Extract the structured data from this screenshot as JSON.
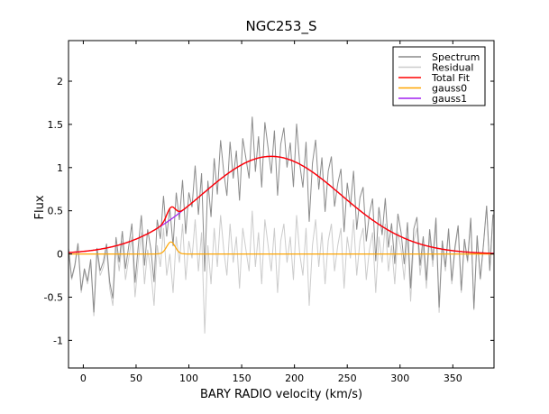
{
  "chart_data": {
    "type": "line",
    "title": "NGC253_S",
    "xlabel": "BARY RADIO velocity (km/s)",
    "ylabel": "Flux",
    "xlim": [
      -14,
      389
    ],
    "ylim": [
      -1.32,
      2.47
    ],
    "xticks": [
      0,
      50,
      100,
      150,
      200,
      250,
      300,
      350
    ],
    "xtick_labels": [
      "0",
      "50",
      "100",
      "150",
      "200",
      "250",
      "300",
      "350"
    ],
    "yticks": [
      2,
      1.5,
      1,
      0.5,
      0,
      -0.5,
      -1
    ],
    "ytick_labels": [
      "2",
      "1.5",
      "1",
      "0.5",
      "0",
      "-0.5",
      "-1"
    ],
    "grid": false,
    "legend_position": "top-right",
    "legend": [
      "Spectrum",
      "Residual",
      "Total Fit",
      "gauss0",
      "gauss1"
    ],
    "colors": {
      "Spectrum": "#8c8c8c",
      "Residual": "#cccccc",
      "Total Fit": "#ff0000",
      "gauss0": "#ffa500",
      "gauss1": "#a020f0"
    },
    "fit_components": [
      {
        "name": "gauss0",
        "amplitude": 0.14,
        "center": 83,
        "sigma": 4
      },
      {
        "name": "gauss1",
        "amplitude": 1.13,
        "center": 178,
        "sigma": 66
      }
    ],
    "x": [
      -14,
      -11,
      -8,
      -5,
      -2,
      1,
      4,
      7,
      10,
      13,
      16,
      19,
      22,
      25,
      28,
      31,
      34,
      37,
      40,
      43,
      46,
      49,
      52,
      55,
      58,
      61,
      64,
      67,
      70,
      73,
      76,
      79,
      82,
      85,
      88,
      91,
      94,
      97,
      100,
      103,
      106,
      109,
      112,
      115,
      118,
      121,
      124,
      127,
      130,
      133,
      136,
      139,
      142,
      145,
      148,
      151,
      154,
      157,
      160,
      163,
      166,
      169,
      172,
      175,
      178,
      181,
      184,
      187,
      190,
      193,
      196,
      199,
      202,
      205,
      208,
      211,
      214,
      217,
      220,
      223,
      226,
      229,
      232,
      235,
      238,
      241,
      244,
      247,
      250,
      253,
      256,
      259,
      262,
      265,
      268,
      271,
      274,
      277,
      280,
      283,
      286,
      289,
      292,
      295,
      298,
      301,
      304,
      307,
      310,
      313,
      316,
      319,
      322,
      325,
      328,
      331,
      334,
      337,
      340,
      343,
      346,
      349,
      352,
      355,
      358,
      361,
      364,
      367,
      370,
      373,
      376,
      379,
      382,
      385,
      388
    ],
    "residual": [
      0.05,
      -0.3,
      -0.15,
      0.1,
      -0.45,
      -0.2,
      -0.35,
      -0.1,
      -0.72,
      0.02,
      -0.25,
      -0.15,
      0.05,
      -0.4,
      -0.6,
      0.1,
      -0.2,
      0.15,
      -0.3,
      -0.05,
      0.2,
      -0.5,
      -0.1,
      0.25,
      -0.35,
      0.05,
      -0.2,
      -0.6,
      0.1,
      -0.15,
      0.3,
      -0.25,
      0.0,
      -0.45,
      0.2,
      -0.1,
      0.35,
      -0.3,
      0.15,
      -0.05,
      0.4,
      -0.2,
      0.25,
      -0.92,
      0.1,
      -0.35,
      0.3,
      -0.15,
      0.45,
      0.05,
      -0.25,
      0.35,
      -0.1,
      0.2,
      -0.4,
      0.3,
      0.05,
      -0.2,
      0.5,
      -0.15,
      0.25,
      -0.35,
      0.4,
      0.1,
      -0.2,
      0.3,
      -0.45,
      0.15,
      0.35,
      -0.1,
      0.2,
      -0.3,
      0.45,
      0.0,
      -0.25,
      0.3,
      -0.6,
      0.1,
      0.4,
      -0.15,
      0.25,
      -0.35,
      0.15,
      0.35,
      -0.2,
      0.1,
      0.3,
      -0.4,
      0.2,
      -0.05,
      0.4,
      -0.25,
      0.15,
      0.3,
      -0.3,
      0.05,
      0.25,
      -0.45,
      0.2,
      -0.1,
      0.35,
      -0.2,
      0.1,
      -0.35,
      0.25,
      0.05,
      -0.3,
      0.2,
      -0.55,
      0.15,
      0.3,
      -0.25,
      0.1,
      -0.4,
      0.2,
      -0.15,
      0.35,
      -0.68,
      0.1,
      -0.2,
      0.25,
      -0.35,
      0.05,
      0.3,
      -0.45,
      0.15,
      -0.1,
      0.4,
      -0.65,
      0.2,
      -0.3,
      0.1,
      0.55,
      -0.2,
      0.45
    ]
  }
}
